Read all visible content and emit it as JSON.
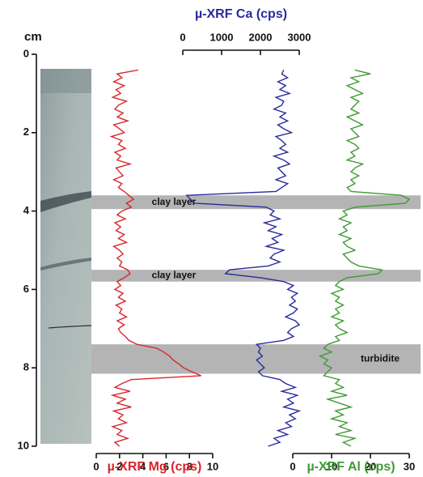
{
  "chart_data": {
    "type": "depth-profile",
    "ylabel": "cm",
    "ylim": [
      0,
      10
    ],
    "yticks": [
      0,
      2,
      4,
      6,
      8,
      10
    ],
    "depth": [
      0.4,
      0.5,
      0.6,
      0.7,
      0.8,
      0.9,
      1.0,
      1.1,
      1.2,
      1.3,
      1.4,
      1.5,
      1.6,
      1.7,
      1.8,
      1.9,
      2.0,
      2.1,
      2.2,
      2.3,
      2.4,
      2.5,
      2.6,
      2.7,
      2.8,
      2.9,
      3.0,
      3.1,
      3.2,
      3.3,
      3.4,
      3.5,
      3.6,
      3.7,
      3.8,
      3.9,
      4.0,
      4.1,
      4.2,
      4.3,
      4.4,
      4.5,
      4.6,
      4.7,
      4.8,
      4.9,
      5.0,
      5.1,
      5.2,
      5.3,
      5.4,
      5.5,
      5.6,
      5.7,
      5.8,
      5.9,
      6.0,
      6.1,
      6.2,
      6.3,
      6.4,
      6.5,
      6.6,
      6.7,
      6.8,
      6.9,
      7.0,
      7.1,
      7.2,
      7.3,
      7.4,
      7.5,
      7.6,
      7.7,
      7.8,
      7.9,
      8.0,
      8.1,
      8.2,
      8.3,
      8.4,
      8.5,
      8.6,
      8.7,
      8.8,
      8.9,
      9.0,
      9.1,
      9.2,
      9.3,
      9.4,
      9.5,
      9.6,
      9.7,
      9.8,
      9.9,
      10.0
    ],
    "series": [
      {
        "name": "µ-XRF Mg (cps)",
        "color": "#d9262c",
        "axis": "bottom",
        "xlim": [
          0,
          10
        ],
        "xticks": [
          0,
          2,
          4,
          6,
          8,
          10
        ],
        "values": [
          3.6,
          1.8,
          2.2,
          1.5,
          2.4,
          1.7,
          2.1,
          1.4,
          2.6,
          1.9,
          1.6,
          2.3,
          1.8,
          2.7,
          1.5,
          2.0,
          2.4,
          1.3,
          2.2,
          1.9,
          2.5,
          1.6,
          2.1,
          1.8,
          2.9,
          1.7,
          2.0,
          2.3,
          1.5,
          2.2,
          1.9,
          2.4,
          2.8,
          3.2,
          2.6,
          3.0,
          2.2,
          1.8,
          2.5,
          1.6,
          2.1,
          1.7,
          2.4,
          1.9,
          2.6,
          1.5,
          2.0,
          2.3,
          1.8,
          2.2,
          2.0,
          2.7,
          2.9,
          2.4,
          1.8,
          2.1,
          1.6,
          2.3,
          1.9,
          2.5,
          1.7,
          2.2,
          2.0,
          2.6,
          1.8,
          2.4,
          1.9,
          2.1,
          2.5,
          2.8,
          3.5,
          5.2,
          5.8,
          6.3,
          6.6,
          7.1,
          7.5,
          8.2,
          9.0,
          3.0,
          2.2,
          1.6,
          2.9,
          1.4,
          2.5,
          1.8,
          3.0,
          1.5,
          2.3,
          1.9,
          2.6,
          1.4,
          2.2,
          1.8,
          2.7,
          1.6,
          2.0
        ]
      },
      {
        "name": "µ-XRF Ca (cps)",
        "color": "#2a2a9c",
        "axis": "top",
        "xlim": [
          0,
          3000
        ],
        "xticks": [
          0,
          1000,
          2000,
          3000
        ],
        "values": [
          2600,
          2550,
          2700,
          2450,
          2650,
          2500,
          2750,
          2400,
          2600,
          2550,
          2350,
          2650,
          2500,
          2700,
          2450,
          2600,
          2800,
          2400,
          2550,
          2650,
          2500,
          2700,
          2350,
          2600,
          2750,
          2450,
          2550,
          2650,
          2400,
          2700,
          2550,
          2400,
          100,
          200,
          300,
          2150,
          2350,
          2250,
          2500,
          2100,
          2400,
          2200,
          2550,
          2300,
          2450,
          2150,
          2600,
          2350,
          2250,
          2500,
          2200,
          1200,
          1100,
          2000,
          2600,
          2850,
          2700,
          2950,
          2800,
          2900,
          2750,
          2950,
          2850,
          2650,
          2900,
          3000,
          2800,
          2700,
          2850,
          2600,
          1900,
          2000,
          1950,
          2050,
          1900,
          2000,
          2100,
          1950,
          2050,
          2500,
          2650,
          2900,
          2550,
          2950,
          2700,
          2850,
          2600,
          3000,
          2750,
          2900,
          2650,
          2800,
          2450,
          2700,
          2350,
          2500,
          2200
        ]
      },
      {
        "name": "µ-XRF Al (cps)",
        "color": "#3f9a35",
        "axis": "bottom",
        "xlim": [
          0,
          30
        ],
        "xticks": [
          0,
          10,
          20,
          30
        ],
        "values": [
          16,
          20,
          15,
          17,
          14,
          16,
          18,
          15,
          17,
          16,
          15,
          17,
          14,
          16,
          18,
          15,
          16,
          17,
          14,
          16,
          17,
          15,
          16,
          14,
          18,
          16,
          15,
          17,
          15,
          16,
          14,
          15,
          28,
          30,
          29,
          16,
          13,
          14,
          12,
          15,
          13,
          14,
          12,
          15,
          13,
          14,
          16,
          13,
          14,
          15,
          17,
          23,
          22,
          14,
          12,
          11,
          13,
          10,
          12,
          11,
          13,
          11,
          12,
          10,
          13,
          11,
          12,
          14,
          11,
          12,
          9,
          8,
          10,
          7,
          9,
          8,
          10,
          9,
          8,
          12,
          11,
          13,
          10,
          14,
          9,
          12,
          15,
          11,
          13,
          10,
          14,
          12,
          15,
          11,
          16,
          13,
          15
        ]
      }
    ],
    "bands": [
      {
        "label": "clay layer",
        "from": 3.6,
        "to": 3.95
      },
      {
        "label": "clay layer",
        "from": 5.5,
        "to": 5.8
      },
      {
        "label": "turbidite",
        "from": 7.4,
        "to": 8.15
      }
    ]
  }
}
